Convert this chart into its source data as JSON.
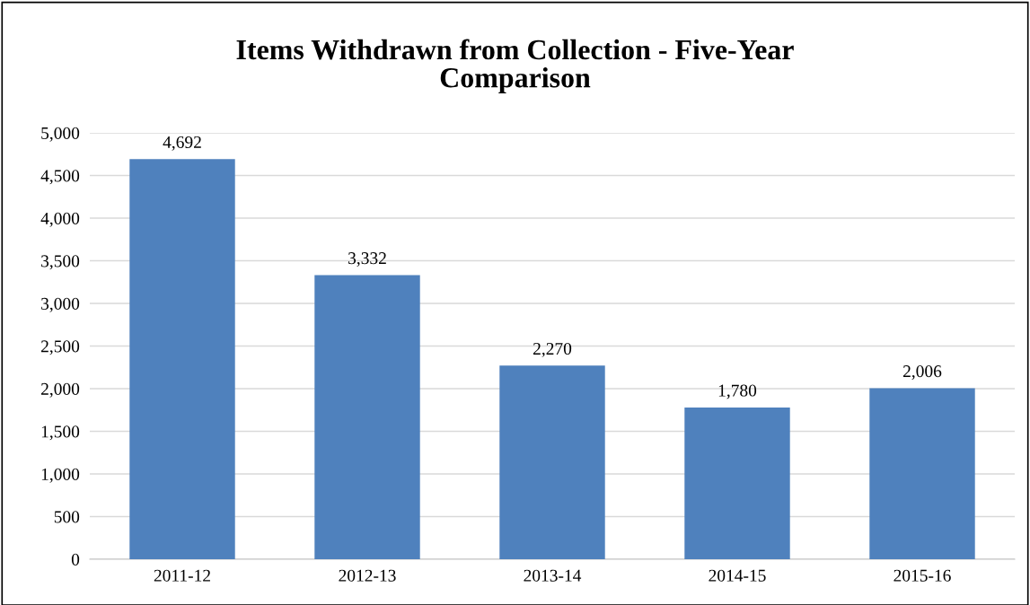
{
  "chart_data": {
    "type": "bar",
    "title": "Items Withdrawn from Collection - Five-Year\nComparison",
    "categories": [
      "2011-12",
      "2012-13",
      "2013-14",
      "2014-15",
      "2015-16"
    ],
    "values": [
      4692,
      3332,
      2270,
      1780,
      2006
    ],
    "value_labels": [
      "4,692",
      "3,332",
      "2,270",
      "1,780",
      "2,006"
    ],
    "color": "#4f81bd",
    "ylim": [
      0,
      5000
    ],
    "yticks": [
      {
        "value": 0,
        "label": "0"
      },
      {
        "value": 500,
        "label": "500"
      },
      {
        "value": 1000,
        "label": "1,000"
      },
      {
        "value": 1500,
        "label": "1,500"
      },
      {
        "value": 2000,
        "label": "2,000"
      },
      {
        "value": 2500,
        "label": "2,500"
      },
      {
        "value": 3000,
        "label": "3,000"
      },
      {
        "value": 3500,
        "label": "3,500"
      },
      {
        "value": 4000,
        "label": "4,000"
      },
      {
        "value": 4500,
        "label": "4,500"
      },
      {
        "value": 5000,
        "label": "5,000"
      }
    ],
    "grid": "y"
  }
}
